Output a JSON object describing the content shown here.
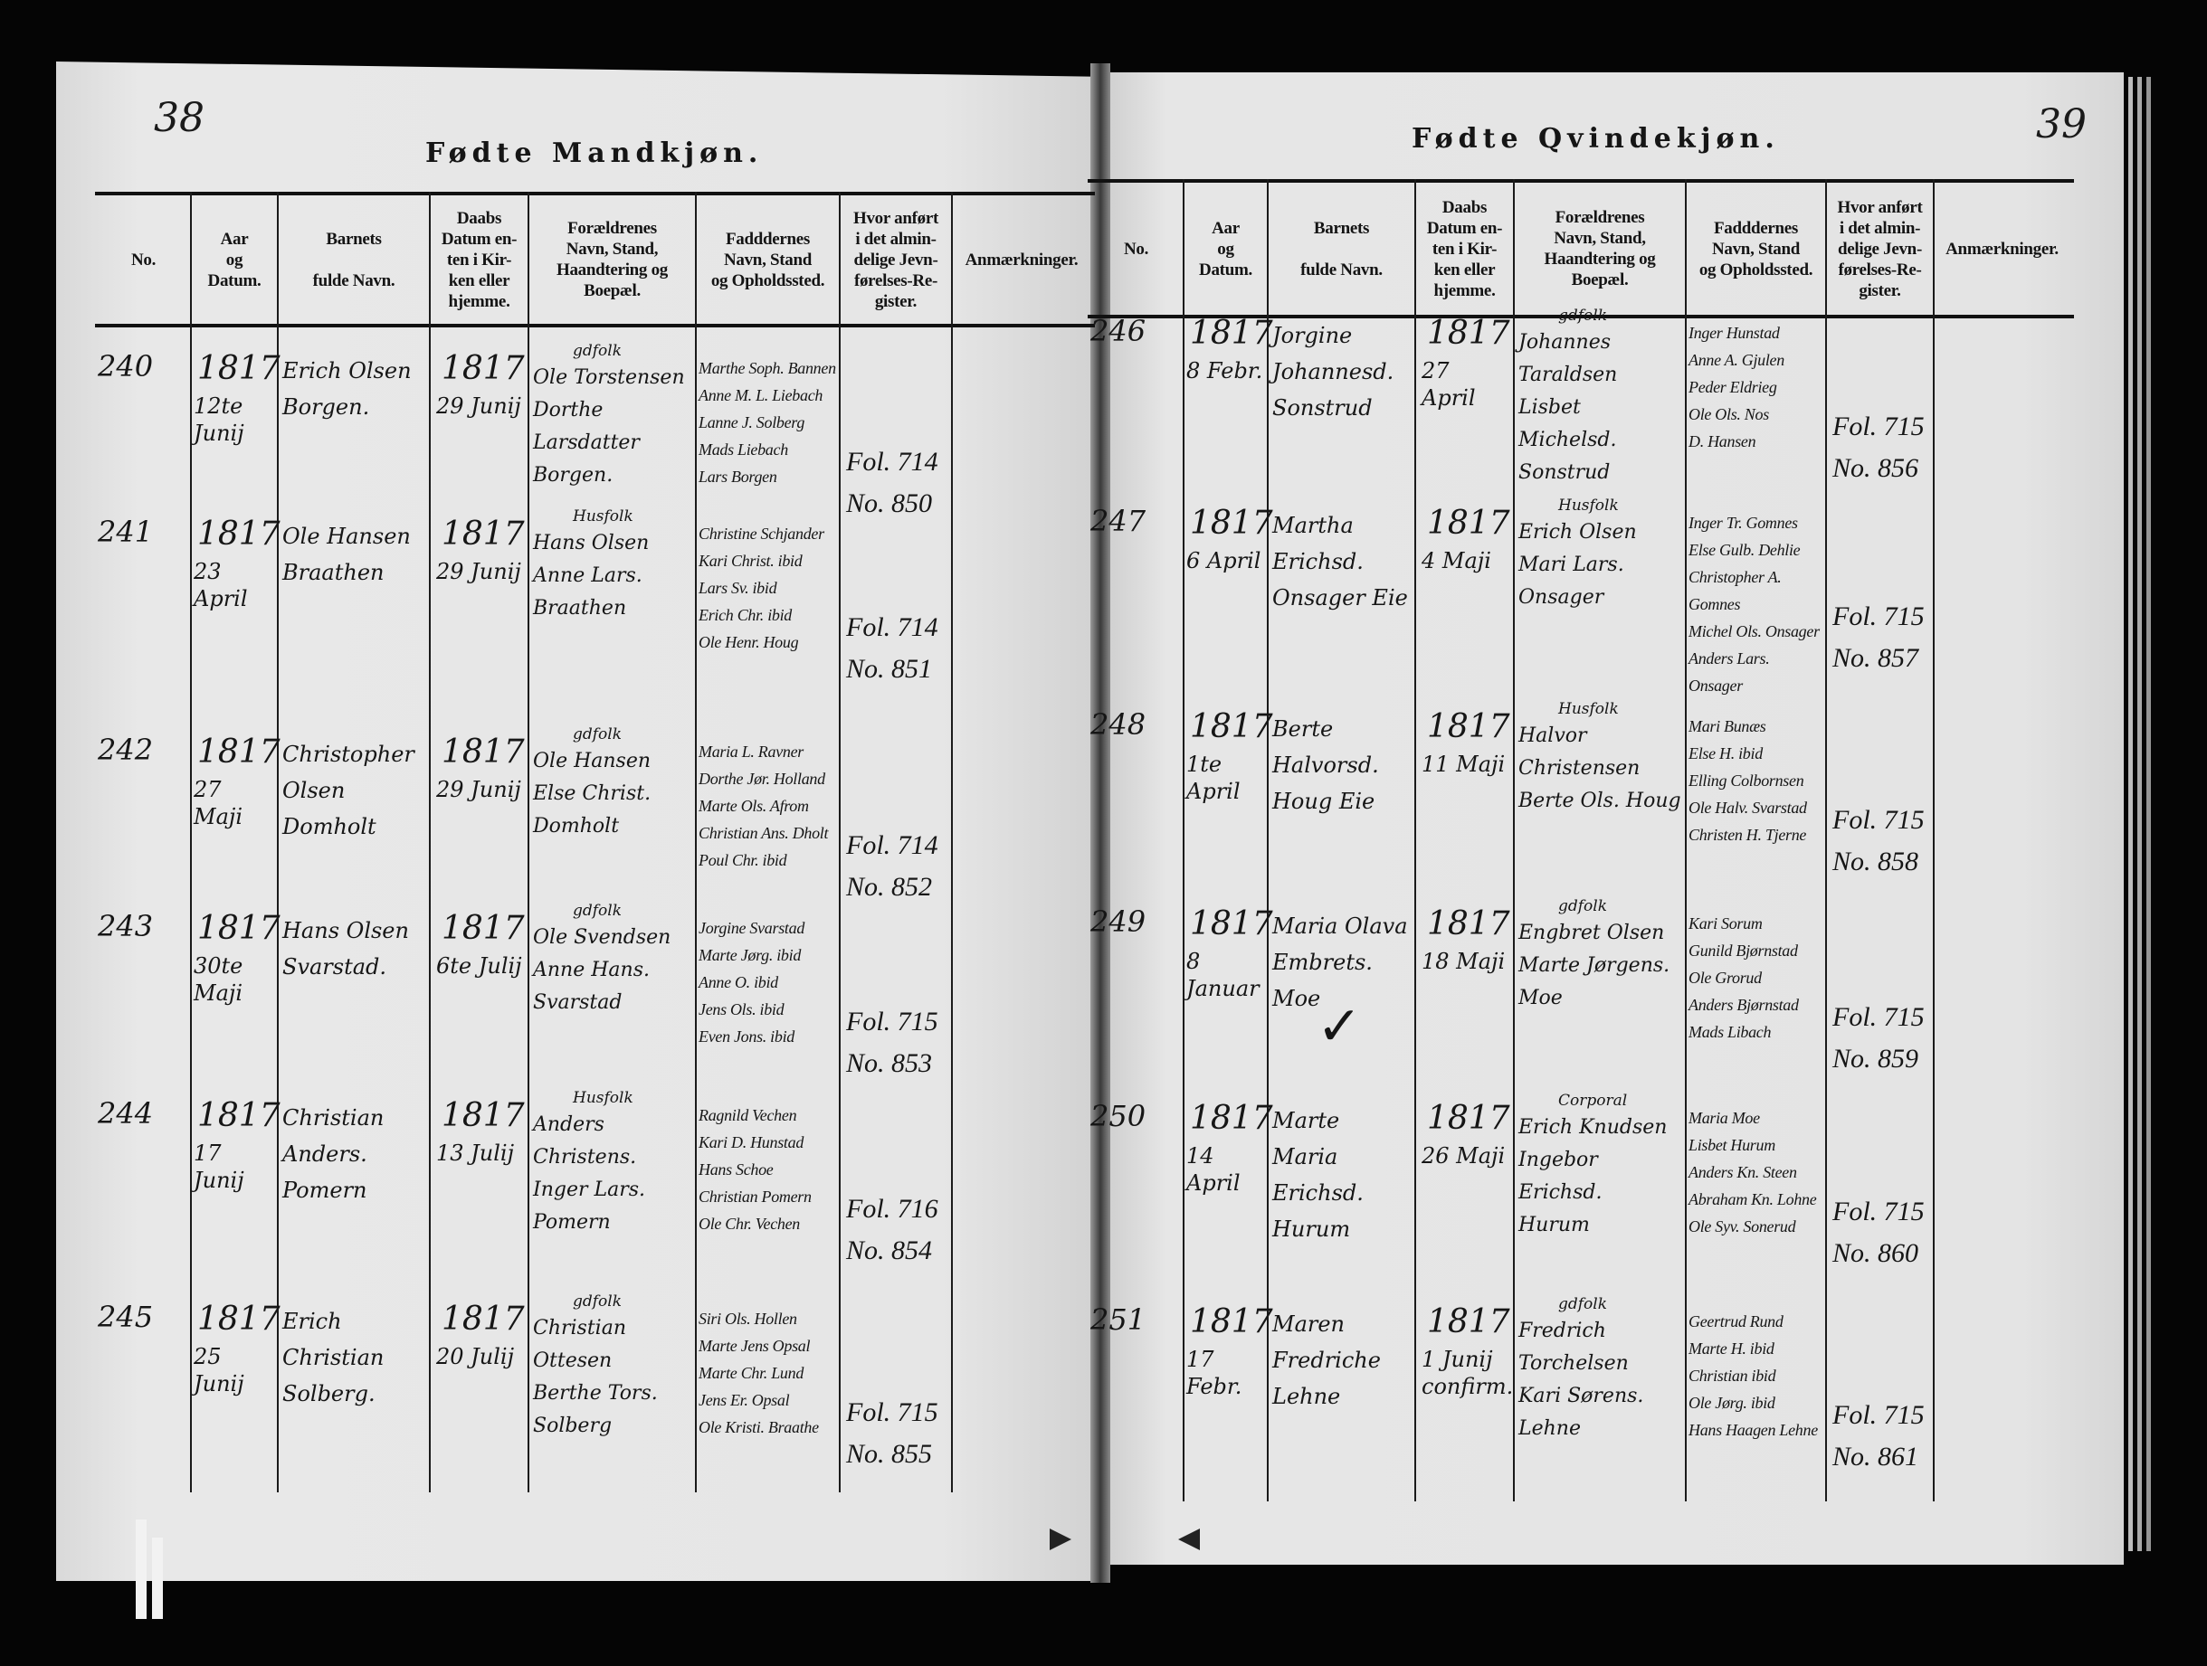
{
  "left_page": {
    "page_number": "38",
    "title": "Fødte Mandkjøn.",
    "headers": [
      "No.",
      "Aar\nog\nDatum.",
      "Barnets\n\nfulde Navn.",
      "Daabs\nDatum en-\nten i Kir-\nken eller\nhjemme.",
      "Forældrenes\nNavn, Stand,\nHaandtering og\nBoepæl.",
      "Fadddernes\nNavn, Stand\nog Opholdssted.",
      "Hvor anført\ni det almin-\ndelige Jevn-\nførelses-Re-\ngister.",
      "Anmærkninger."
    ],
    "entries": [
      {
        "no": "240",
        "year": "1817",
        "date": "12te Junij",
        "child": "Erich Olsen\nBorgen.",
        "bapt_year": "1817",
        "bapt_date": "29 Junij",
        "parents_note": "gdfolk",
        "parents": "Ole Torstensen\nDorthe Larsdatter\nBorgen.",
        "sponsors": "Marthe Soph. Bannen\nAnne M. L. Liebach\nLanne J. Solberg\nMads Liebach\nLars Borgen",
        "register": "Fol. 714\nNo. 850",
        "remarks": ""
      },
      {
        "no": "241",
        "year": "1817",
        "date": "23 April",
        "child": "Ole Hansen\nBraathen",
        "bapt_year": "1817",
        "bapt_date": "29 Junij",
        "parents_note": "Husfolk",
        "parents": "Hans Olsen\nAnne Lars. Braathen",
        "sponsors": "Christine Schjander\nKari Christ. ibid\nLars Sv. ibid\nErich Chr. ibid\nOle Henr. Houg",
        "register": "Fol. 714\nNo. 851",
        "remarks": ""
      },
      {
        "no": "242",
        "year": "1817",
        "date": "27 Maji",
        "child": "Christopher\nOlsen Domholt",
        "bapt_year": "1817",
        "bapt_date": "29 Junij",
        "parents_note": "gdfolk",
        "parents": "Ole Hansen\nElse Christ. Domholt",
        "sponsors": "Maria L. Ravner\nDorthe Jør. Holland\nMarte Ols. Afrom\nChristian Ans. Dholt\nPoul Chr. ibid",
        "register": "Fol. 714\nNo. 852",
        "remarks": ""
      },
      {
        "no": "243",
        "year": "1817",
        "date": "30te Maji",
        "child": "Hans Olsen\nSvarstad.",
        "bapt_year": "1817",
        "bapt_date": "6te Julij",
        "parents_note": "gdfolk",
        "parents": "Ole Svendsen\nAnne Hans. Svarstad",
        "sponsors": "Jorgine Svarstad\nMarte Jørg. ibid\nAnne O. ibid\nJens Ols. ibid\nEven Jons. ibid",
        "register": "Fol. 715\nNo. 853",
        "remarks": ""
      },
      {
        "no": "244",
        "year": "1817",
        "date": "17 Junij",
        "child": "Christian Anders.\nPomern",
        "bapt_year": "1817",
        "bapt_date": "13 Julij",
        "parents_note": "Husfolk",
        "parents": "Anders Christens.\nInger Lars. Pomern",
        "sponsors": "Ragnild Vechen\nKari D. Hunstad\nHans Schoe\nChristian Pomern\nOle Chr. Vechen",
        "register": "Fol. 716\nNo. 854",
        "remarks": ""
      },
      {
        "no": "245",
        "year": "1817",
        "date": "25 Junij",
        "child": "Erich Christian\nSolberg.",
        "bapt_year": "1817",
        "bapt_date": "20 Julij",
        "parents_note": "gdfolk",
        "parents": "Christian Ottesen\nBerthe Tors. \nSolberg",
        "sponsors": "Siri Ols. Hollen\nMarte Jens Opsal\nMarte Chr. Lund\nJens Er. Opsal\nOle Kristi. Braathe",
        "register": "Fol. 715\nNo. 855",
        "remarks": ""
      }
    ]
  },
  "right_page": {
    "page_number": "39",
    "title": "Fødte Qvindekjøn.",
    "headers": [
      "No.",
      "Aar\nog\nDatum.",
      "Barnets\n\nfulde Navn.",
      "Daabs\nDatum en-\nten i Kir-\nken eller\nhjemme.",
      "Forældrenes\nNavn, Stand,\nHaandtering og\nBoepæl.",
      "Fadddernes\nNavn, Stand\nog Opholdssted.",
      "Hvor anført\ni det almin-\ndelige Jevn-\nførelses-Re-\ngister.",
      "Anmærkninger."
    ],
    "entries": [
      {
        "no": "246",
        "year": "1817",
        "date": "8 Febr.",
        "child": "Jorgine Johannesd.\nSonstrud",
        "bapt_year": "1817",
        "bapt_date": "27 April",
        "parents_note": "gdfolk",
        "parents": "Johannes Taraldsen\nLisbet Michelsd.\nSonstrud",
        "sponsors": "Inger Hunstad\nAnne A. Gjulen\nPeder Eldrieg\nOle Ols. Nos\nD. Hansen",
        "register": "Fol. 715\nNo. 856",
        "remarks": ""
      },
      {
        "no": "247",
        "year": "1817",
        "date": "6 April",
        "child": "Martha Erichsd.\nOnsager Eie",
        "bapt_year": "1817",
        "bapt_date": "4 Maji",
        "parents_note": "Husfolk",
        "parents": "Erich Olsen\nMari Lars. Onsager",
        "sponsors": "Inger Tr. Gomnes\nElse Gulb. Dehlie\nChristopher A. Gomnes\nMichel Ols. Onsager\nAnders Lars. Onsager",
        "register": "Fol. 715\nNo. 857",
        "remarks": ""
      },
      {
        "no": "248",
        "year": "1817",
        "date": "1te April",
        "child": "Berte Halvorsd.\nHoug Eie",
        "bapt_year": "1817",
        "bapt_date": "11 Maji",
        "parents_note": "Husfolk",
        "parents": "Halvor Christensen\nBerte Ols. Houg",
        "sponsors": "Mari Bunæs\nElse H. ibid\nElling Colbornsen\nOle Halv. Svarstad\nChristen H. Tjerne",
        "register": "Fol. 715\nNo. 858",
        "remarks": ""
      },
      {
        "no": "249",
        "year": "1817",
        "date": "8 Januar",
        "child": "Maria Olava\nEmbrets. Moe",
        "bapt_year": "1817",
        "bapt_date": "18 Maji",
        "parents_note": "gdfolk",
        "parents": "Engbret Olsen\nMarte Jørgens. Moe",
        "sponsors": "Kari Sorum\nGunild Bjørnstad\nOle Grorud\nAnders Bjørnstad\nMads Libach",
        "register": "Fol. 715\nNo. 859",
        "remarks": ""
      },
      {
        "no": "250",
        "year": "1817",
        "date": "14 April",
        "child": "Marte Maria Erichsd.\nHurum",
        "bapt_year": "1817",
        "bapt_date": "26 Maji",
        "parents_note": "Corporal",
        "parents": "Erich Knudsen\nIngebor Erichsd.\nHurum",
        "sponsors": "Maria Moe\nLisbet Hurum\nAnders Kn. Steen\nAbraham Kn. Lohne\nOle Syv. Sonerud",
        "register": "Fol. 715\nNo. 860",
        "remarks": ""
      },
      {
        "no": "251",
        "year": "1817",
        "date": "17 Febr.",
        "child": "Maren Fredriche\nLehne",
        "bapt_year": "1817",
        "bapt_date": "1 Junij\nconfirm.",
        "parents_note": "gdfolk",
        "parents": "Fredrich Torchelsen\nKari Sørens. Lehne",
        "sponsors": "Geertrud Rund\nMarte H. ibid\nChristian ibid\nOle Jørg. ibid\nHans Haagen Lehne",
        "register": "Fol. 715\nNo. 861",
        "remarks": ""
      }
    ]
  },
  "colors": {
    "paper": "#e6e6e6",
    "ink": "#161616",
    "background": "#050505"
  }
}
